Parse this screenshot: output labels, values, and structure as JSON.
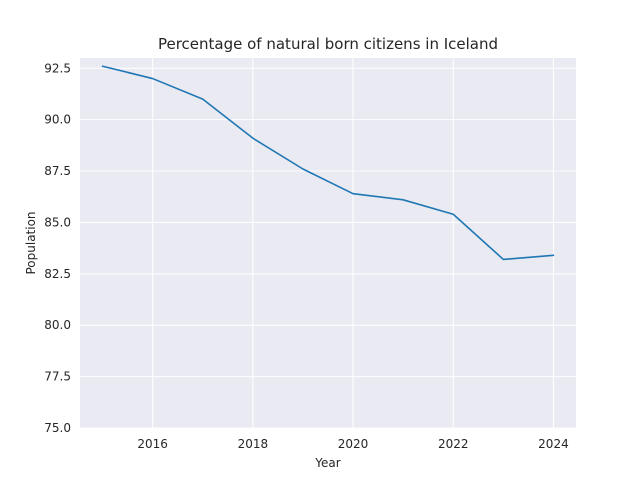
{
  "colors": {
    "plot_background": "#eaeaf2",
    "grid": "#ffffff",
    "series": "#1f77b4",
    "text": "#262626"
  },
  "chart_data": {
    "type": "line",
    "title": "Percentage of natural born citizens in Iceland",
    "xlabel": "Year",
    "ylabel": "Population",
    "grid": true,
    "xlim": [
      2014.55,
      2024.45
    ],
    "ylim": [
      75.0,
      93.0
    ],
    "x_ticks": [
      2016,
      2018,
      2020,
      2022,
      2024
    ],
    "x_tick_labels": [
      "2016",
      "2018",
      "2020",
      "2022",
      "2024"
    ],
    "y_ticks": [
      75.0,
      77.5,
      80.0,
      82.5,
      85.0,
      87.5,
      90.0,
      92.5
    ],
    "y_tick_labels": [
      "75.0",
      "77.5",
      "80.0",
      "82.5",
      "85.0",
      "87.5",
      "90.0",
      "92.5"
    ],
    "series": [
      {
        "x": [
          2015,
          2016,
          2017,
          2018,
          2019,
          2020,
          2021,
          2022,
          2023,
          2024
        ],
        "values": [
          92.6,
          92.0,
          91.0,
          89.1,
          87.6,
          86.4,
          86.1,
          85.4,
          83.2,
          83.4
        ]
      }
    ]
  }
}
